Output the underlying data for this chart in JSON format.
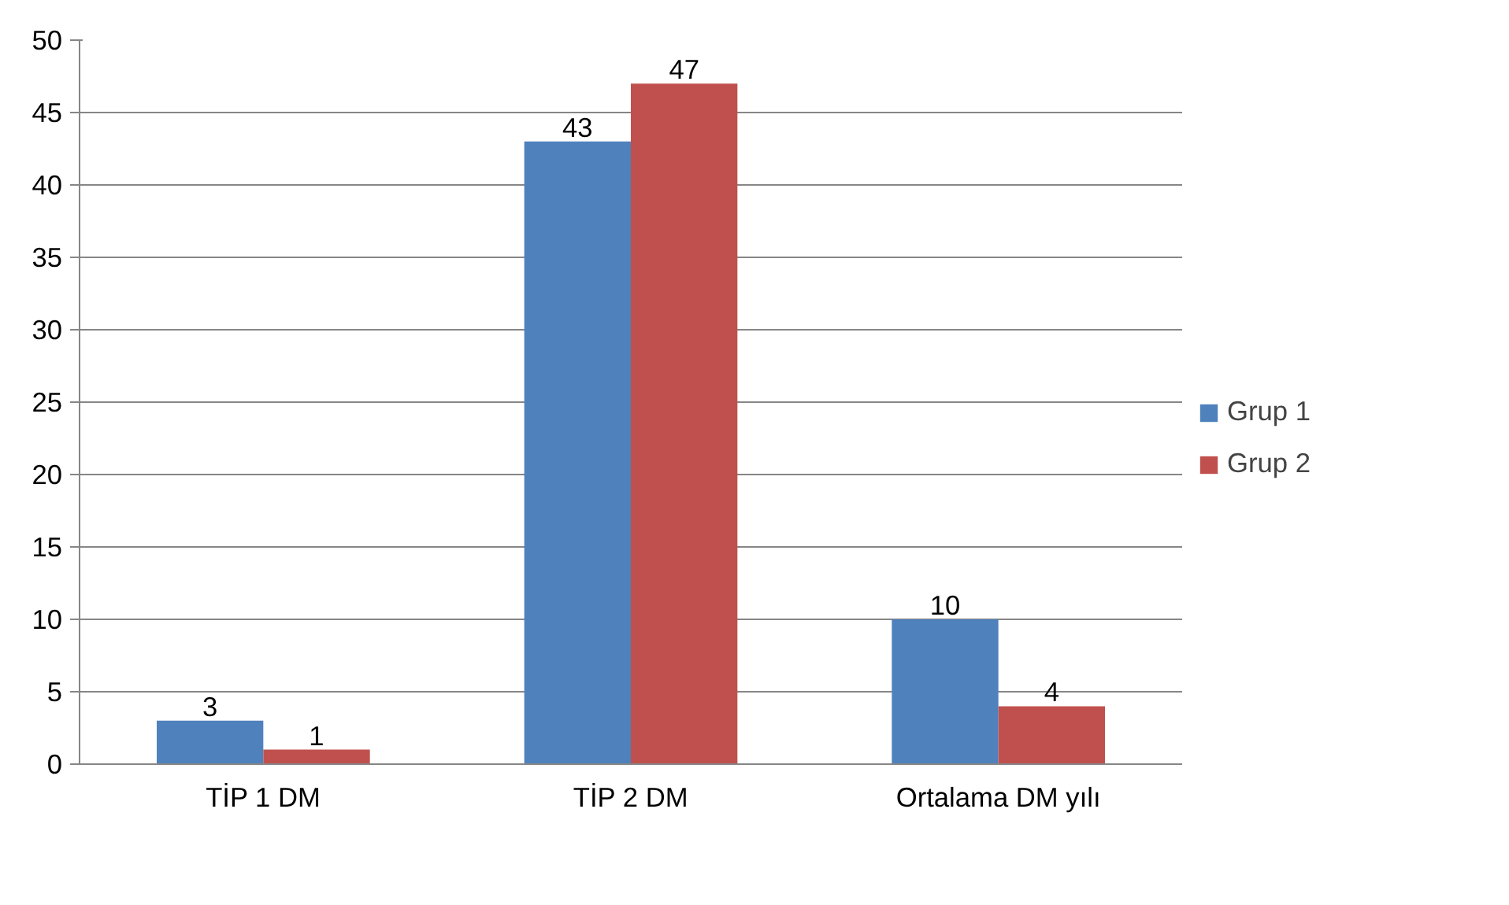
{
  "chart_data": {
    "type": "bar",
    "categories": [
      "TİP 1 DM",
      "TİP 2 DM",
      "Ortalama DM yılı"
    ],
    "series": [
      {
        "name": "Grup 1",
        "color": "#4f81bd",
        "values": [
          3,
          43,
          10
        ]
      },
      {
        "name": "Grup 2",
        "color": "#c0504d",
        "values": [
          1,
          47,
          4
        ]
      }
    ],
    "ylim": [
      0,
      50
    ],
    "yticks": [
      0,
      5,
      10,
      15,
      20,
      25,
      30,
      35,
      40,
      45,
      50
    ],
    "grid": "y",
    "legend": "right",
    "data_labels": true
  }
}
